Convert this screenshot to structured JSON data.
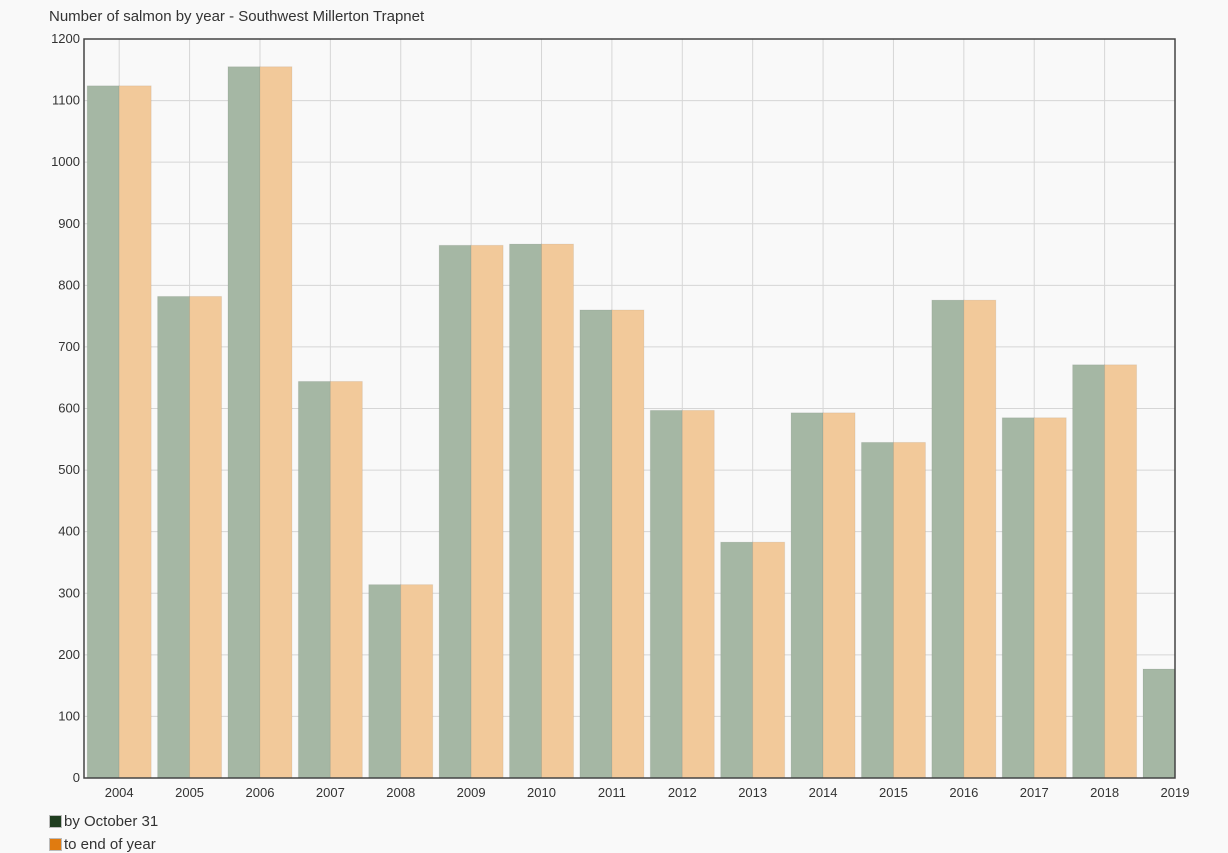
{
  "chart_data": {
    "type": "bar",
    "title": "Number of salmon by year - Southwest Millerton Trapnet",
    "categories": [
      "2004",
      "2005",
      "2006",
      "2007",
      "2008",
      "2009",
      "2010",
      "2011",
      "2012",
      "2013",
      "2014",
      "2015",
      "2016",
      "2017",
      "2018",
      "2019"
    ],
    "series": [
      {
        "name": "by October 31",
        "color": "#1f3d1f",
        "bar_color": "#a5b7a4",
        "values": [
          1124,
          782,
          1155,
          644,
          314,
          865,
          867,
          760,
          597,
          383,
          593,
          545,
          776,
          585,
          671,
          177
        ]
      },
      {
        "name": "to end of year",
        "color": "#e07b10",
        "bar_color": "#f2c99a",
        "values": [
          1124,
          782,
          1155,
          644,
          314,
          865,
          867,
          760,
          597,
          383,
          593,
          545,
          776,
          585,
          671,
          null
        ]
      }
    ],
    "ylim": [
      0,
      1200
    ],
    "yticks": [
      0,
      100,
      200,
      300,
      400,
      500,
      600,
      700,
      800,
      900,
      1000,
      1100,
      1200
    ],
    "grid": true,
    "legend_position": "bottom-left"
  }
}
